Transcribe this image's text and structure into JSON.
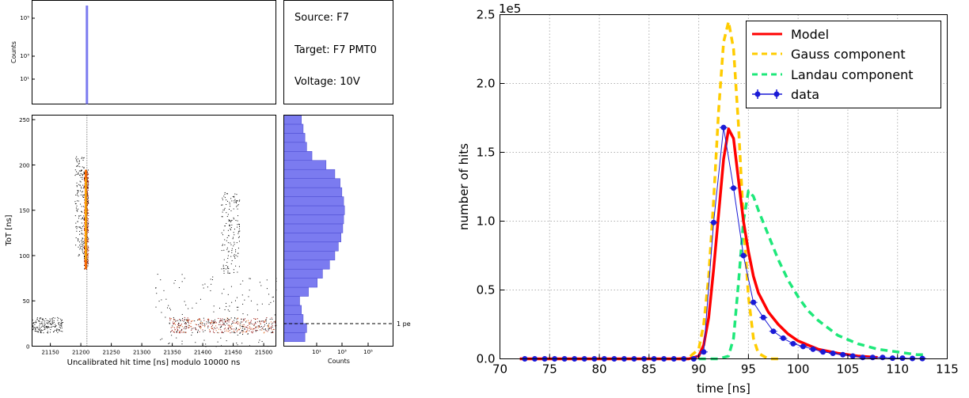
{
  "chart_data": [
    {
      "type": "bar",
      "panel": "top histogram",
      "ylabel": "Counts",
      "yscale": "log",
      "ytick_labels": [
        "10¹",
        "10³",
        "10⁵"
      ],
      "peak": {
        "x": 21210,
        "value": 100000
      },
      "color": "#7b7bf0"
    },
    {
      "type": "table",
      "panel": "info box",
      "lines": [
        "Source: F7",
        "Target: F7 PMT0",
        "Voltage: 10V"
      ]
    },
    {
      "type": "heatmap",
      "panel": "2D hit map",
      "xlabel": "Uncalibrated hit time [ns] modulo 10000 ns",
      "ylabel": "ToT [ns]",
      "xlim": [
        21120,
        21520
      ],
      "ylim": [
        0,
        255
      ],
      "x_ticks": [
        21150,
        21200,
        21250,
        21300,
        21350,
        21400,
        21450,
        21500
      ],
      "y_ticks": [
        0,
        50,
        100,
        150,
        200,
        250
      ],
      "clusters": [
        {
          "x_range": [
            21205,
            21212
          ],
          "y_range": [
            85,
            195
          ],
          "peak": true
        },
        {
          "x_range": [
            21190,
            21205
          ],
          "y_range": [
            100,
            210
          ],
          "peak": false
        },
        {
          "x_range": [
            21345,
            21520
          ],
          "y_range": [
            15,
            32
          ],
          "peak": true
        },
        {
          "x_range": [
            21430,
            21460
          ],
          "y_range": [
            80,
            170
          ],
          "peak": false
        },
        {
          "x_range": [
            21120,
            21170
          ],
          "y_range": [
            15,
            32
          ],
          "peak": false
        },
        {
          "x_range": [
            21320,
            21520
          ],
          "y_range": [
            0,
            80
          ],
          "peak": false
        }
      ]
    },
    {
      "type": "bar",
      "panel": "side histogram",
      "orientation": "horizontal",
      "xlabel": "Counts",
      "xscale": "log",
      "xtick_labels": [
        "10¹",
        "10³",
        "10⁵"
      ],
      "annotation": {
        "text": "1 pe",
        "y": 25
      },
      "tot_bins": [
        10,
        20,
        30,
        40,
        50,
        60,
        70,
        80,
        90,
        100,
        110,
        120,
        130,
        140,
        150,
        160,
        170,
        180,
        190,
        200,
        210,
        220,
        230,
        240,
        250
      ],
      "log_counts": [
        0.8,
        0.9,
        0.7,
        0.6,
        0.5,
        1.0,
        1.5,
        1.8,
        2.2,
        2.5,
        2.7,
        2.85,
        2.95,
        3.0,
        3.05,
        3.0,
        2.9,
        2.8,
        2.5,
        2.0,
        1.2,
        0.9,
        0.8,
        0.7,
        0.6
      ],
      "color": "#7b7bf0"
    },
    {
      "type": "line",
      "panel": "fit",
      "xlabel": "time [ns]",
      "ylabel": "number of hits",
      "y_scale_label": "1e5",
      "xlim": [
        70,
        115
      ],
      "ylim": [
        0,
        2.5
      ],
      "x_ticks": [
        70,
        75,
        80,
        85,
        90,
        95,
        100,
        105,
        110,
        115
      ],
      "y_ticks": [
        0.0,
        0.5,
        1.0,
        1.5,
        2.0,
        2.5
      ],
      "grid": true,
      "legend_position": "top-right",
      "series": [
        {
          "name": "Model",
          "style": "solid",
          "color": "#ff0000",
          "x": [
            72,
            89,
            90,
            90.5,
            91,
            91.5,
            92,
            92.5,
            93,
            93.5,
            94,
            94.5,
            95,
            95.5,
            96,
            97,
            98,
            99,
            100,
            101,
            102,
            104,
            106,
            108
          ],
          "y": [
            0,
            0,
            0.02,
            0.1,
            0.3,
            0.65,
            1.05,
            1.45,
            1.67,
            1.6,
            1.3,
            1.0,
            0.78,
            0.6,
            0.48,
            0.34,
            0.25,
            0.18,
            0.13,
            0.1,
            0.07,
            0.04,
            0.02,
            0.01
          ]
        },
        {
          "name": "Gauss component",
          "style": "dashed",
          "color": "#ffcc00",
          "x": [
            88,
            89,
            90,
            90.5,
            91,
            91.5,
            92,
            92.5,
            93,
            93.5,
            94,
            94.5,
            95,
            95.5,
            96,
            97,
            98
          ],
          "y": [
            0,
            0.01,
            0.07,
            0.25,
            0.6,
            1.15,
            1.8,
            2.3,
            2.45,
            2.25,
            1.7,
            1.0,
            0.45,
            0.15,
            0.04,
            0,
            0
          ],
          "peak_value": 2.45
        },
        {
          "name": "Landau component",
          "style": "dashed",
          "color": "#1ee87a",
          "x": [
            90,
            92,
            93,
            93.5,
            94,
            94.5,
            95,
            95.5,
            96,
            97,
            98,
            99,
            100,
            101,
            102,
            104,
            106,
            108,
            110,
            112,
            113
          ],
          "y": [
            0,
            0,
            0.02,
            0.15,
            0.55,
            1.0,
            1.22,
            1.18,
            1.08,
            0.9,
            0.72,
            0.57,
            0.45,
            0.35,
            0.28,
            0.17,
            0.11,
            0.07,
            0.05,
            0.03,
            0.03
          ]
        },
        {
          "name": "data",
          "style": "points",
          "color": "#1a1ad6",
          "x": [
            72.5,
            73.5,
            74.5,
            75.5,
            76.5,
            77.5,
            78.5,
            79.5,
            80.5,
            81.5,
            82.5,
            83.5,
            84.5,
            85.5,
            86.5,
            87.5,
            88.5,
            89.5,
            90.5,
            91.5,
            92.5,
            93.5,
            94.5,
            95.5,
            96.5,
            97.5,
            98.5,
            99.5,
            100.5,
            101.5,
            102.5,
            103.5,
            104.5,
            105.5,
            106.5,
            107.5,
            108.5,
            109.5,
            110.5,
            111.5,
            112.5
          ],
          "y": [
            0,
            0,
            0,
            0,
            0,
            0,
            0,
            0,
            0,
            0,
            0,
            0,
            0,
            0,
            0,
            0,
            0,
            0,
            0.05,
            0.99,
            1.68,
            1.24,
            0.75,
            0.41,
            0.3,
            0.2,
            0.15,
            0.11,
            0.09,
            0.07,
            0.05,
            0.04,
            0.03,
            0.02,
            0.01,
            0.01,
            0.01,
            0.005,
            0.005,
            0.003,
            0.002
          ]
        }
      ]
    }
  ]
}
